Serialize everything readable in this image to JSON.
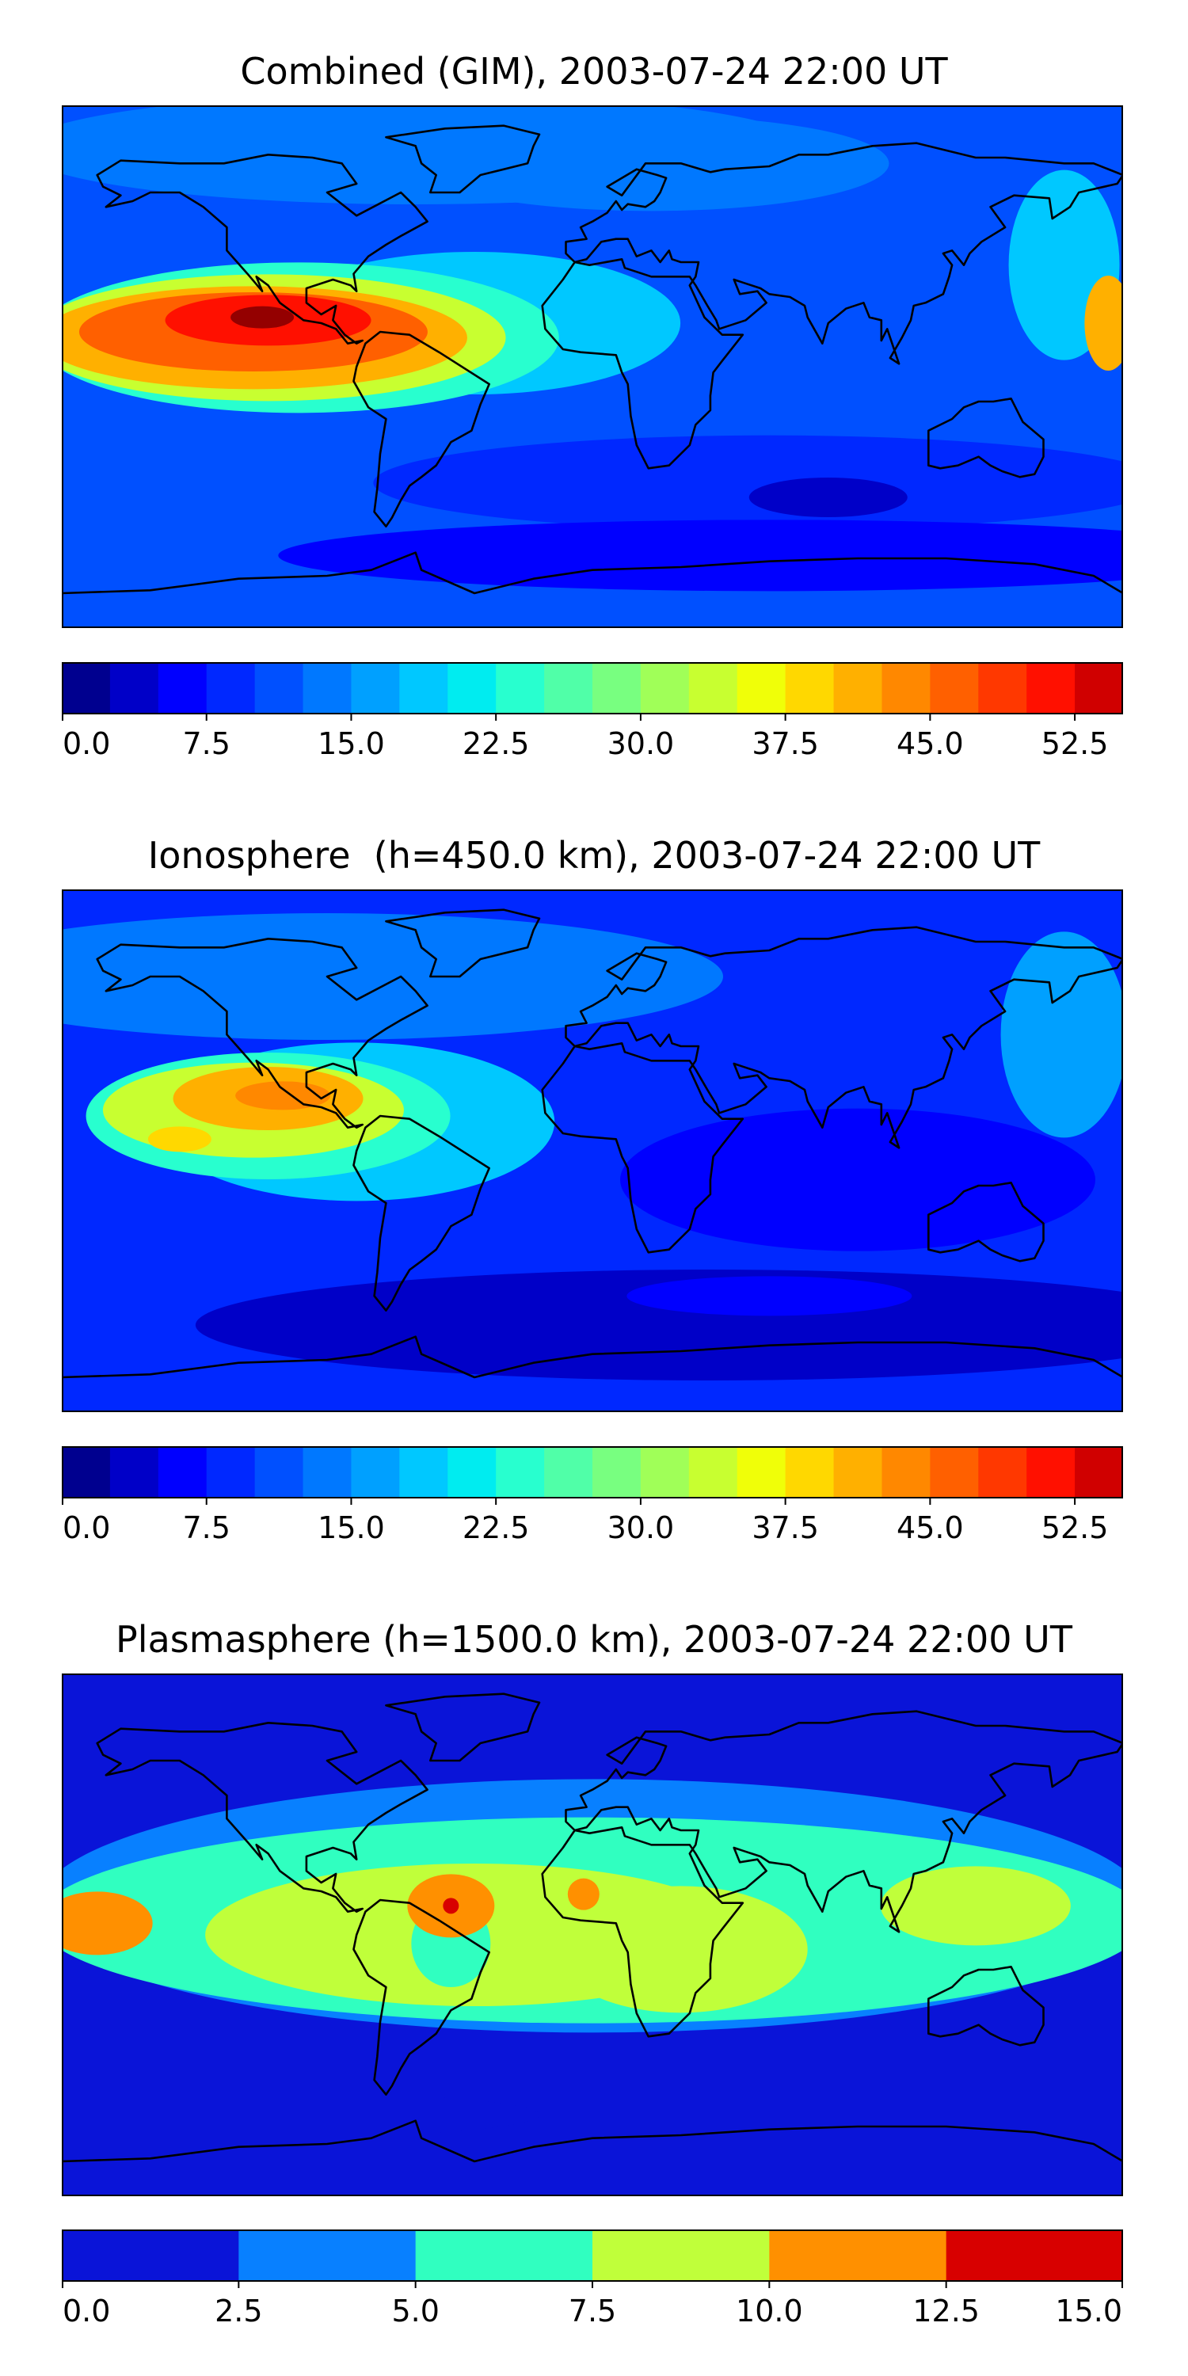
{
  "chart_data": [
    {
      "type": "heatmap",
      "title": "Combined (GIM), 2003-07-24 22:00 UT",
      "colorbar": {
        "levels": [
          0.0,
          2.5,
          5.0,
          7.5,
          10.0,
          12.5,
          15.0,
          17.5,
          20.0,
          22.5,
          25.0,
          27.5,
          30.0,
          32.5,
          35.0,
          37.5,
          40.0,
          42.5,
          45.0,
          47.5,
          50.0,
          52.5,
          55.0
        ],
        "tick_values": [
          0.0,
          7.5,
          15.0,
          22.5,
          30.0,
          37.5,
          45.0,
          52.5
        ],
        "tick_labels": [
          "0.0",
          "7.5",
          "15.0",
          "22.5",
          "30.0",
          "37.5",
          "45.0",
          "52.5"
        ],
        "vmin": 0.0,
        "vmax": 55.0,
        "colors": [
          "#00008f",
          "#0000c8",
          "#0000ff",
          "#0028ff",
          "#0050ff",
          "#0078ff",
          "#00a0ff",
          "#00c8ff",
          "#00ecf0",
          "#28ffcf",
          "#50ffa8",
          "#78ff80",
          "#a0ff58",
          "#c8ff30",
          "#f0ff08",
          "#ffd800",
          "#ffb000",
          "#ff8800",
          "#ff6000",
          "#ff3800",
          "#ff1000",
          "#d00000",
          "#940000"
        ]
      },
      "field": "high values over the eastern Pacific / Central America (max ~55), low values over the Indian Ocean and southern high latitudes"
    },
    {
      "type": "heatmap",
      "title": "Ionosphere  (h=450.0 km), 2003-07-24 22:00 UT",
      "colorbar": {
        "levels": [
          0.0,
          2.5,
          5.0,
          7.5,
          10.0,
          12.5,
          15.0,
          17.5,
          20.0,
          22.5,
          25.0,
          27.5,
          30.0,
          32.5,
          35.0,
          37.5,
          40.0,
          42.5,
          45.0,
          47.5,
          50.0,
          52.5,
          55.0
        ],
        "tick_values": [
          0.0,
          7.5,
          15.0,
          22.5,
          30.0,
          37.5,
          45.0,
          52.5
        ],
        "tick_labels": [
          "0.0",
          "7.5",
          "15.0",
          "22.5",
          "30.0",
          "37.5",
          "45.0",
          "52.5"
        ],
        "vmin": 0.0,
        "vmax": 55.0,
        "colors": [
          "#00008f",
          "#0000c8",
          "#0000ff",
          "#0028ff",
          "#0050ff",
          "#0078ff",
          "#00a0ff",
          "#00c8ff",
          "#00ecf0",
          "#28ffcf",
          "#50ffa8",
          "#78ff80",
          "#a0ff58",
          "#c8ff30",
          "#f0ff08",
          "#ffd800",
          "#ffb000",
          "#ff8800",
          "#ff6000",
          "#ff3800",
          "#ff1000",
          "#d00000",
          "#940000"
        ]
      },
      "field": "maximum (~42) over the eastern Pacific, low values over the Indian Ocean"
    },
    {
      "type": "heatmap",
      "title": "Plasmasphere (h=1500.0 km), 2003-07-24 22:00 UT",
      "colorbar": {
        "levels": [
          0.0,
          2.5,
          5.0,
          7.5,
          10.0,
          12.5,
          15.0
        ],
        "tick_values": [
          0.0,
          2.5,
          5.0,
          7.5,
          10.0,
          12.5,
          15.0
        ],
        "tick_labels": [
          "0.0",
          "2.5",
          "5.0",
          "7.5",
          "10.0",
          "12.5",
          "15.0"
        ],
        "vmin": 0.0,
        "vmax": 15.0,
        "colors": [
          "#0a14d8",
          "#0880ff",
          "#30ffc0",
          "#c0ff3a",
          "#ff9000",
          "#d80000"
        ]
      },
      "field": "equatorial band 5-10, local maxima 10-15 over South America, West Africa and the eastern Pacific"
    }
  ]
}
